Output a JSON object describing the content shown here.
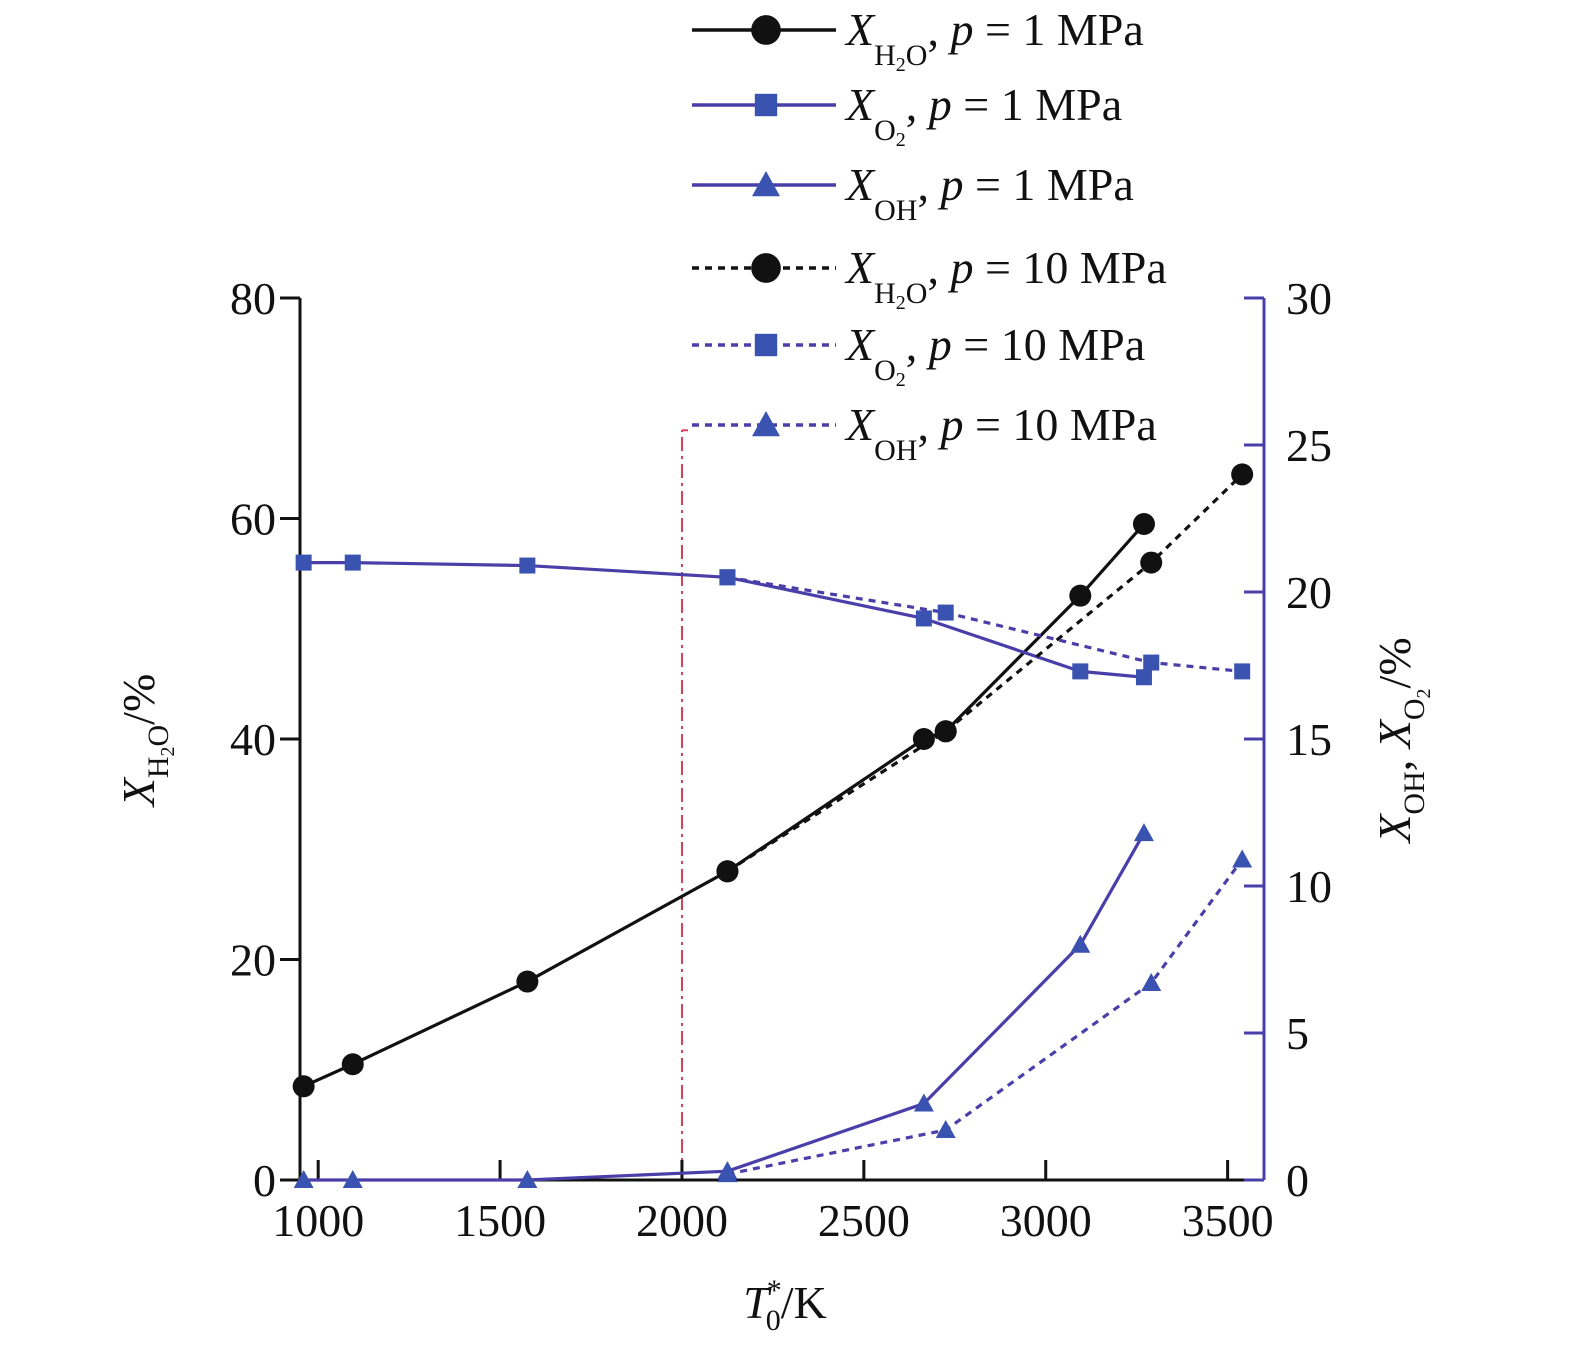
{
  "chart_data": {
    "type": "line",
    "x_axis": {
      "title_main": "T",
      "title_sup": "*",
      "title_sub": "0",
      "title_unit": "/K",
      "range": [
        950,
        3600
      ],
      "ticks": [
        1000,
        1500,
        2000,
        2500,
        3000,
        3500
      ],
      "tick_labels": [
        "1000",
        "1500",
        "2000",
        "2500",
        "3000",
        "3500"
      ]
    },
    "y_left": {
      "title_main": "X",
      "title_sub": "H",
      "title_sub2": "2",
      "title_sub3": "O",
      "title_unit": "/%",
      "range": [
        0,
        80
      ],
      "ticks": [
        0,
        20,
        40,
        60,
        80
      ],
      "tick_labels": [
        "0",
        "20",
        "40",
        "60",
        "80"
      ]
    },
    "y_right": {
      "title_part1": "X",
      "title_part1_sub": "OH",
      "title_sep": ", ",
      "title_part2": "X",
      "title_part2_sub": "O",
      "title_part2_sub2": "2",
      "title_unit": "/%",
      "range": [
        0,
        30
      ],
      "ticks": [
        0,
        5,
        10,
        15,
        20,
        25,
        30
      ],
      "tick_labels": [
        "0",
        "5",
        "10",
        "15",
        "20",
        "25",
        "30"
      ]
    },
    "reference_line": {
      "x": 2000,
      "y_left_top": 68,
      "color": "#d0405a"
    },
    "colors": {
      "black": "#111111",
      "blue_line": "#4a3fa8",
      "blue_marker": "#3a53b0",
      "axis_right": "#4a3fa8"
    },
    "series": [
      {
        "name": "X H2O, p = 1 MPa",
        "legend": {
          "var": "X",
          "sub": "H",
          "sub2": "2",
          "sub3": "O",
          "rest": ", p = 1 MPa"
        },
        "axis": "left",
        "style": "solid",
        "marker": "circle",
        "color": "black",
        "points": [
          [
            960,
            8.5
          ],
          [
            1095,
            10.5
          ],
          [
            1575,
            18
          ],
          [
            2125,
            28
          ],
          [
            2665,
            40
          ],
          [
            2725,
            40.7
          ],
          [
            3095,
            53
          ],
          [
            3270,
            59.5
          ]
        ]
      },
      {
        "name": "X O2, p = 1 MPa",
        "legend": {
          "var": "X",
          "sub": "O",
          "sub2": "2",
          "sub3": "",
          "rest": ", p = 1 MPa"
        },
        "axis": "right",
        "style": "solid",
        "marker": "square",
        "color": "blue",
        "points": [
          [
            960,
            21
          ],
          [
            1095,
            21
          ],
          [
            1575,
            20.9
          ],
          [
            2125,
            20.5
          ],
          [
            2665,
            19.1
          ],
          [
            3095,
            17.3
          ],
          [
            3270,
            17.1
          ]
        ]
      },
      {
        "name": "X OH, p = 1 MPa",
        "legend": {
          "var": "X",
          "sub": "OH",
          "sub2": "",
          "sub3": "",
          "rest": ", p = 1 MPa"
        },
        "axis": "right",
        "style": "solid",
        "marker": "triangle",
        "color": "blue",
        "points": [
          [
            960,
            0
          ],
          [
            1095,
            0
          ],
          [
            1575,
            0
          ],
          [
            2125,
            0.3
          ],
          [
            2665,
            2.6
          ],
          [
            3095,
            8.0
          ],
          [
            3270,
            11.8
          ]
        ]
      },
      {
        "name": "X H2O, p = 10 MPa",
        "legend": {
          "var": "X",
          "sub": "H",
          "sub2": "2",
          "sub3": "O",
          "rest": ", p = 10 MPa"
        },
        "axis": "left",
        "style": "dotted",
        "marker": "circle",
        "color": "black",
        "points": [
          [
            2125,
            28
          ],
          [
            2725,
            40.7
          ],
          [
            3290,
            56
          ],
          [
            3540,
            64
          ]
        ]
      },
      {
        "name": "X O2, p = 10 MPa",
        "legend": {
          "var": "X",
          "sub": "O",
          "sub2": "2",
          "sub3": "",
          "rest": ", p = 10 MPa"
        },
        "axis": "right",
        "style": "dotted",
        "marker": "square",
        "color": "blue",
        "points": [
          [
            2125,
            20.5
          ],
          [
            2725,
            19.3
          ],
          [
            3290,
            17.6
          ],
          [
            3540,
            17.3
          ]
        ]
      },
      {
        "name": "X OH, p = 10 MPa",
        "legend": {
          "var": "X",
          "sub": "OH",
          "sub2": "",
          "sub3": "",
          "rest": ", p = 10 MPa"
        },
        "axis": "right",
        "style": "dotted",
        "marker": "triangle",
        "color": "blue",
        "points": [
          [
            2125,
            0.2
          ],
          [
            2725,
            1.7
          ],
          [
            3290,
            6.7
          ],
          [
            3540,
            10.9
          ]
        ]
      }
    ]
  }
}
